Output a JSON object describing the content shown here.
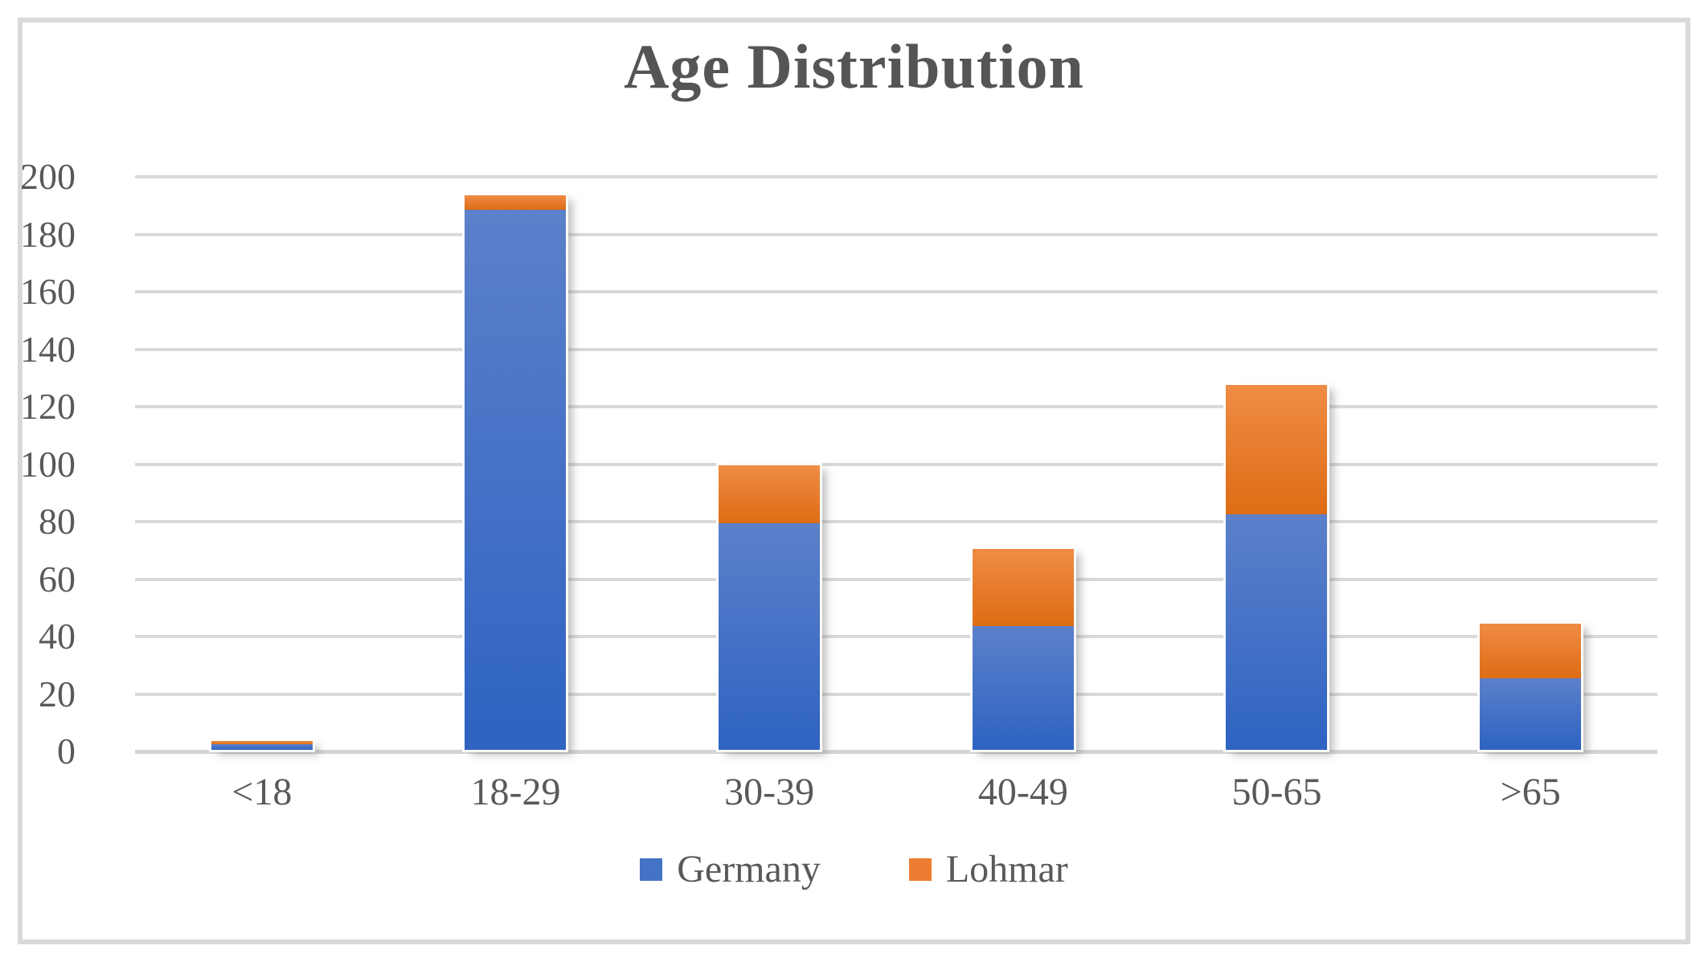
{
  "figure": {
    "title": "Age Distribution"
  },
  "chart_data": {
    "type": "bar",
    "stacked": true,
    "title": "Age Distribution",
    "xlabel": "",
    "ylabel": "",
    "categories": [
      "<18",
      "18-29",
      "30-39",
      "40-49",
      "50-65",
      ">65"
    ],
    "series": [
      {
        "name": "Germany",
        "color": "#4472c4",
        "values": [
          2,
          188,
          79,
          43,
          82,
          25
        ]
      },
      {
        "name": "Lohmar",
        "color": "#ed7d31",
        "values": [
          1,
          5,
          20,
          27,
          45,
          19
        ]
      }
    ],
    "stack_totals": [
      3,
      193,
      99,
      70,
      127,
      44
    ],
    "ylim": [
      0,
      200
    ],
    "ytick_step": 20,
    "yticks": [
      0,
      20,
      40,
      60,
      80,
      100,
      120,
      140,
      160,
      180,
      200
    ],
    "grid": true,
    "legend_position": "bottom"
  },
  "colors": {
    "germany_gradient_top": "#5c80ca",
    "germany_gradient_bottom": "#2e63c2",
    "lohmar_gradient_top": "#ef8c45",
    "lohmar_gradient_bottom": "#de6c14",
    "gridline": "#d9d9d9",
    "frame_border": "#d9d9d9",
    "text": "#595959",
    "background": "#ffffff"
  }
}
